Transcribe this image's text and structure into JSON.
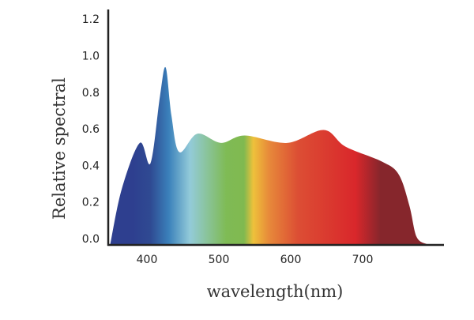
{
  "chart_data": {
    "type": "area",
    "title": "",
    "xlabel": "wavelength(nm)",
    "ylabel": "Relative spectral",
    "xlim": [
      335,
      810
    ],
    "ylim": [
      0,
      1.2
    ],
    "x_ticks": [
      400,
      500,
      600,
      700
    ],
    "x_tick_labels": [
      "400",
      "500",
      "600",
      "700"
    ],
    "y_ticks": [
      0.0,
      0.2,
      0.4,
      0.6,
      0.8,
      1.0,
      1.2
    ],
    "y_tick_labels": [
      "0.0",
      "0.2",
      "0.4",
      "0.6",
      "0.8",
      "1.0",
      "1.2"
    ],
    "grid": false,
    "legend": "none",
    "series": [
      {
        "x": [
          349,
          365,
          390,
          405,
          418,
          426,
          434,
          445,
          470,
          503,
          536,
          595,
          646,
          676,
          726,
          750,
          765,
          775,
          789
        ],
        "y": [
          0.0,
          0.3,
          0.55,
          0.44,
          0.8,
          0.96,
          0.7,
          0.5,
          0.6,
          0.55,
          0.59,
          0.55,
          0.62,
          0.53,
          0.45,
          0.38,
          0.21,
          0.04,
          0.0
        ]
      }
    ],
    "fill_gradient": [
      {
        "nm": 380,
        "color": "#2e3f8f"
      },
      {
        "nm": 405,
        "color": "#2f4a92"
      },
      {
        "nm": 430,
        "color": "#3a80ba"
      },
      {
        "nm": 460,
        "color": "#93cbd9"
      },
      {
        "nm": 510,
        "color": "#7fbb55"
      },
      {
        "nm": 535,
        "color": "#80b950"
      },
      {
        "nm": 548,
        "color": "#eec13b"
      },
      {
        "nm": 570,
        "color": "#e7893a"
      },
      {
        "nm": 610,
        "color": "#dc4e34"
      },
      {
        "nm": 690,
        "color": "#d9272b"
      },
      {
        "nm": 725,
        "color": "#86262c"
      }
    ],
    "axis_color": "#222222"
  }
}
